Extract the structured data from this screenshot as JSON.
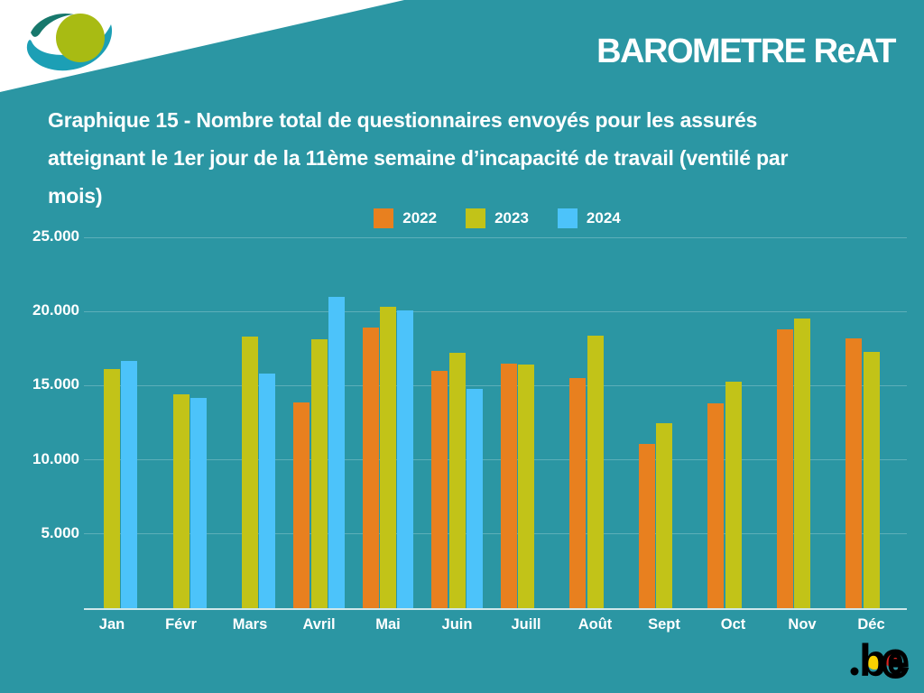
{
  "header": {
    "app_title": "BAROMETRE ReAT",
    "logo": "mutuality-eye-logo"
  },
  "title_lines": [
    "Graphique 15  - Nombre total de questionnaires envoyés pour les assurés",
    "atteignant le 1er jour de la 11ème semaine d’incapacité de travail (ventilé par",
    "mois)"
  ],
  "footer": {
    "be_logo_text": ".be"
  },
  "theme": {
    "background": "#2B96A3",
    "text": "#FFFFFF",
    "axis": "rgba(255,255,255,0.78)",
    "grid": "rgba(255,255,255,0.24)",
    "be_yellow": "#FAD201",
    "be_red": "#DE2320"
  },
  "chart_data": {
    "type": "bar",
    "title": "Graphique 15 - Nombre total de questionnaires envoyés pour les assurés atteignant le 1er jour de la 11ème semaine d’incapacité de travail (ventilé par mois)",
    "categories": [
      "Jan",
      "Févr",
      "Mars",
      "Avril",
      "Mai",
      "Juin",
      "Juill",
      "Août",
      "Sept",
      "Oct",
      "Nov",
      "Déc"
    ],
    "series": [
      {
        "name": "2022",
        "color": "#E8801F",
        "values": [
          null,
          null,
          null,
          13900,
          18900,
          16000,
          16500,
          15500,
          11100,
          13800,
          18800,
          18200
        ]
      },
      {
        "name": "2023",
        "color": "#C2C318",
        "values": [
          16100,
          14400,
          18300,
          18100,
          20300,
          17200,
          16400,
          18400,
          12500,
          15300,
          19500,
          17300
        ]
      },
      {
        "name": "2024",
        "color": "#4CC3FA",
        "values": [
          16700,
          14200,
          15800,
          21000,
          20100,
          14800,
          null,
          null,
          null,
          null,
          null,
          null
        ]
      }
    ],
    "xlabel": "",
    "ylabel": "",
    "ylim": [
      0,
      25000
    ],
    "yticks": [
      {
        "value": 5000,
        "label": "5.000"
      },
      {
        "value": 10000,
        "label": "10.000"
      },
      {
        "value": 15000,
        "label": "15.000"
      },
      {
        "value": 20000,
        "label": "20.000"
      },
      {
        "value": 25000,
        "label": "25.000"
      }
    ],
    "grid": true,
    "legend_position": "top"
  }
}
